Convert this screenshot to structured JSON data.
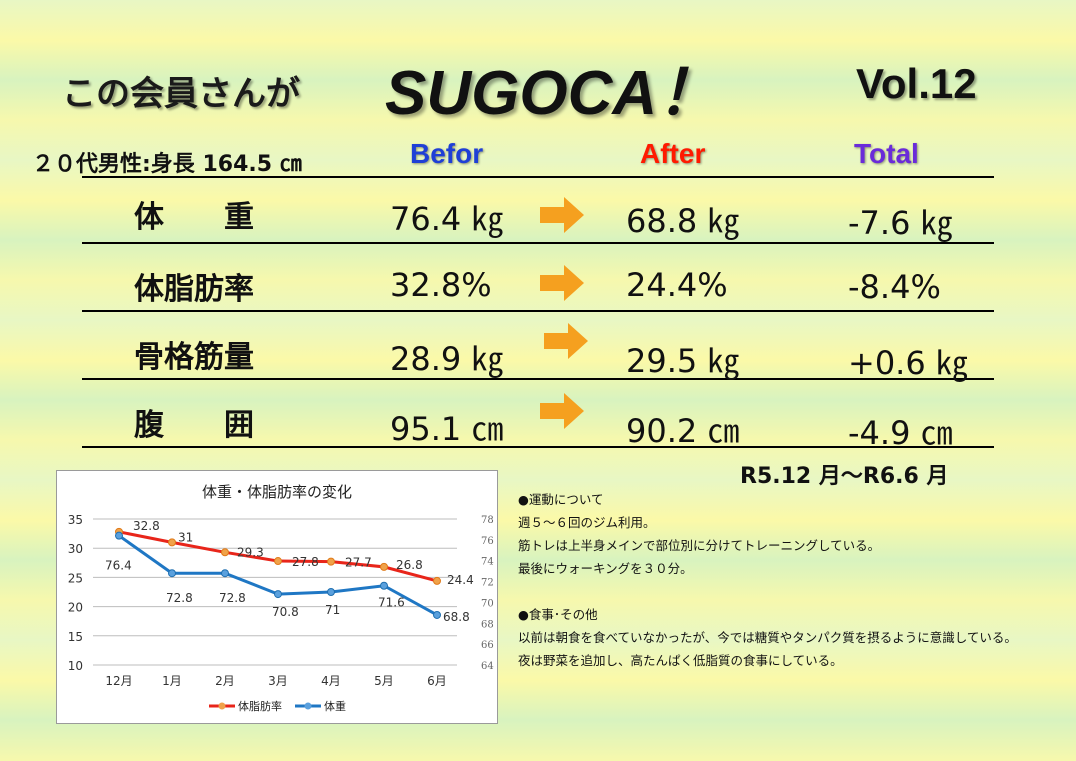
{
  "header": {
    "title_left": "この会員さんが",
    "title_main": "SUGOCA！",
    "volume": "Vol.12"
  },
  "subject": "２０代男性:身長 164.5 ㎝",
  "columns": {
    "before": "Befor",
    "after": "After",
    "total": "Total"
  },
  "rows": [
    {
      "label": "体　　重",
      "before": "76.4 ㎏",
      "after": "68.8 ㎏",
      "total": "-7.6 ㎏"
    },
    {
      "label": "体脂肪率",
      "before": "32.8%",
      "after": "24.4%",
      "total": "-8.4%"
    },
    {
      "label": "骨格筋量",
      "before": "28.9 ㎏",
      "after": "29.5 ㎏",
      "total": "+0.6 ㎏"
    },
    {
      "label": "腹　　囲",
      "before": "95.1 ㎝",
      "after": "90.2 ㎝",
      "total": "-4.9 ㎝"
    }
  ],
  "period": "R5.12 月～R6.6 月",
  "colors": {
    "arrow": "#f5a01f",
    "fat_series": "#e8251a",
    "weight_series": "#1f77c4"
  },
  "chart_data": {
    "type": "line",
    "title": "体重・体脂肪率の変化",
    "categories": [
      "12月",
      "1月",
      "2月",
      "3月",
      "4月",
      "5月",
      "6月"
    ],
    "left_axis": {
      "ylim": [
        10,
        35
      ],
      "ticks": [
        10,
        15,
        20,
        25,
        30,
        35
      ]
    },
    "right_axis": {
      "ylim": [
        64,
        78
      ],
      "ticks": [
        64,
        66,
        68,
        70,
        72,
        74,
        76,
        78
      ]
    },
    "grid": true,
    "legend": "bottom",
    "series": [
      {
        "name": "体脂肪率",
        "axis": "left",
        "values": [
          32.8,
          31,
          29.3,
          27.8,
          27.7,
          26.8,
          24.4
        ],
        "labels": [
          "32.8",
          "31",
          "29.3",
          "27.8",
          "27.7",
          "26.8",
          "24.4"
        ]
      },
      {
        "name": "体重",
        "axis": "right",
        "values": [
          76.4,
          72.8,
          72.8,
          70.8,
          71,
          71.6,
          68.8
        ],
        "labels": [
          "76.4",
          "72.8",
          "72.8",
          "70.8",
          "71",
          "71.6",
          "68.8"
        ]
      }
    ]
  },
  "notes": {
    "exercise_heading": "●運動について",
    "exercise_lines": [
      "週５～６回のジム利用。",
      "筋トレは上半身メインで部位別に分けてトレーニングしている。",
      "最後にウォーキングを３０分。"
    ],
    "diet_heading": "●食事･その他",
    "diet_lines": [
      "以前は朝食を食べていなかったが、今では糖質やタンパク質を摂るように意識している。",
      "夜は野菜を追加し、高たんぱく低脂質の食事にしている。"
    ]
  }
}
